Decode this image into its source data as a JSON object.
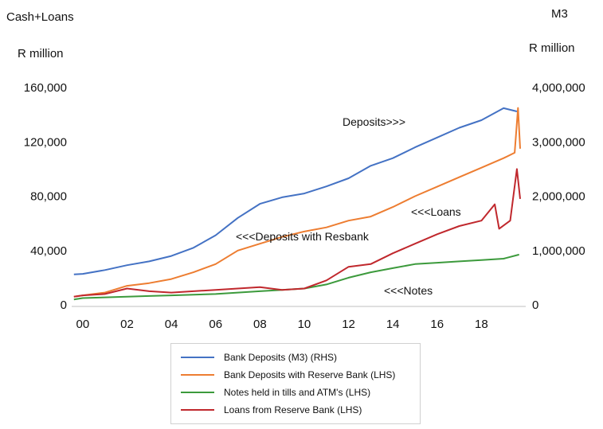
{
  "chart_data": {
    "type": "line",
    "left_axis": {
      "title": "Cash+Loans",
      "unit": "R million",
      "ylim": [
        0,
        160000
      ],
      "ticks": [
        "0",
        "40,000",
        "80,000",
        "120,000",
        "160,000"
      ]
    },
    "right_axis": {
      "title": "M3",
      "unit": "R million",
      "ylim": [
        0,
        4000000
      ],
      "ticks": [
        "0",
        "1,000,000",
        "2,000,000",
        "3,000,000",
        "4,000,000"
      ]
    },
    "x_axis": {
      "tick_labels": [
        "00",
        "02",
        "04",
        "06",
        "08",
        "10",
        "12",
        "14",
        "16",
        "18"
      ],
      "xlim": [
        1999.5,
        2020.0
      ]
    },
    "annotations": [
      "Deposits>>>",
      "<<<Deposits with Resbank",
      "<<<Loans",
      "<<<Notes"
    ],
    "series": [
      {
        "name": "Bank Deposits (M3) (RHS)",
        "axis": "right",
        "color": "#4472c4",
        "points": [
          [
            1999.6,
            560000
          ],
          [
            2000,
            570000
          ],
          [
            2001,
            640000
          ],
          [
            2002,
            730000
          ],
          [
            2003,
            800000
          ],
          [
            2004,
            900000
          ],
          [
            2005,
            1050000
          ],
          [
            2006,
            1280000
          ],
          [
            2007,
            1600000
          ],
          [
            2008,
            1860000
          ],
          [
            2009,
            1980000
          ],
          [
            2010,
            2050000
          ],
          [
            2011,
            2180000
          ],
          [
            2012,
            2330000
          ],
          [
            2013,
            2560000
          ],
          [
            2014,
            2700000
          ],
          [
            2015,
            2900000
          ],
          [
            2016,
            3080000
          ],
          [
            2017,
            3260000
          ],
          [
            2018,
            3400000
          ],
          [
            2019,
            3620000
          ],
          [
            2019.6,
            3560000
          ]
        ]
      },
      {
        "name": "Bank Deposits with Reserve Bank (LHS)",
        "axis": "left",
        "color": "#ed7d31",
        "points": [
          [
            1999.6,
            6000
          ],
          [
            2000,
            7000
          ],
          [
            2001,
            9000
          ],
          [
            2002,
            14000
          ],
          [
            2003,
            16000
          ],
          [
            2004,
            19000
          ],
          [
            2005,
            24000
          ],
          [
            2006,
            30000
          ],
          [
            2007,
            40000
          ],
          [
            2008,
            45000
          ],
          [
            2009,
            50000
          ],
          [
            2010,
            54000
          ],
          [
            2011,
            57000
          ],
          [
            2012,
            62000
          ],
          [
            2013,
            65000
          ],
          [
            2014,
            72000
          ],
          [
            2015,
            80000
          ],
          [
            2016,
            87000
          ],
          [
            2017,
            94000
          ],
          [
            2018,
            101000
          ],
          [
            2019,
            108000
          ],
          [
            2019.5,
            112000
          ],
          [
            2019.65,
            145000
          ],
          [
            2019.75,
            115000
          ]
        ]
      },
      {
        "name": "Notes held in tills and ATM's (LHS)",
        "axis": "left",
        "color": "#3c9a3c",
        "points": [
          [
            1999.6,
            4000
          ],
          [
            2000,
            5000
          ],
          [
            2001,
            5500
          ],
          [
            2002,
            6000
          ],
          [
            2003,
            6500
          ],
          [
            2004,
            7000
          ],
          [
            2005,
            7500
          ],
          [
            2006,
            8000
          ],
          [
            2007,
            9000
          ],
          [
            2008,
            10000
          ],
          [
            2009,
            11000
          ],
          [
            2010,
            12000
          ],
          [
            2011,
            15000
          ],
          [
            2012,
            20000
          ],
          [
            2013,
            24000
          ],
          [
            2014,
            27000
          ],
          [
            2015,
            30000
          ],
          [
            2016,
            31000
          ],
          [
            2017,
            32000
          ],
          [
            2018,
            33000
          ],
          [
            2019,
            34000
          ],
          [
            2019.7,
            37000
          ]
        ]
      },
      {
        "name": "Loans from Reserve Bank (LHS)",
        "axis": "left",
        "color": "#c0282d",
        "points": [
          [
            1999.6,
            6000
          ],
          [
            2000,
            7000
          ],
          [
            2001,
            8000
          ],
          [
            2002,
            12000
          ],
          [
            2003,
            10000
          ],
          [
            2004,
            9000
          ],
          [
            2005,
            10000
          ],
          [
            2006,
            11000
          ],
          [
            2007,
            12000
          ],
          [
            2008,
            13000
          ],
          [
            2009,
            11000
          ],
          [
            2010,
            12000
          ],
          [
            2011,
            18000
          ],
          [
            2012,
            28000
          ],
          [
            2013,
            30000
          ],
          [
            2014,
            38000
          ],
          [
            2015,
            45000
          ],
          [
            2016,
            52000
          ],
          [
            2017,
            58000
          ],
          [
            2018,
            62000
          ],
          [
            2018.6,
            74000
          ],
          [
            2018.8,
            56000
          ],
          [
            2019.3,
            62000
          ],
          [
            2019.6,
            100000
          ],
          [
            2019.75,
            78000
          ]
        ]
      }
    ]
  }
}
